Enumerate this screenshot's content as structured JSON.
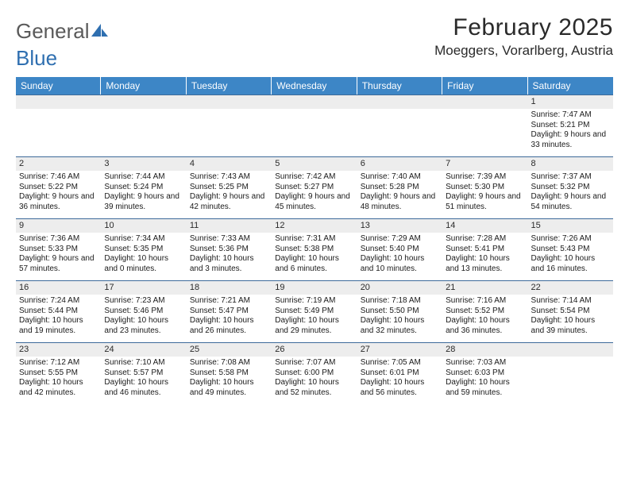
{
  "logo": {
    "text_a": "General",
    "text_b": "Blue"
  },
  "title": "February 2025",
  "location": "Moeggers, Vorarlberg, Austria",
  "colors": {
    "header_bg": "#3d86c6",
    "header_text": "#ffffff",
    "band_bg": "#ededed",
    "band_border": "#3d6a9a",
    "body_text": "#1a1a1a"
  },
  "day_names": [
    "Sunday",
    "Monday",
    "Tuesday",
    "Wednesday",
    "Thursday",
    "Friday",
    "Saturday"
  ],
  "weeks": [
    [
      {
        "n": "",
        "sr": "",
        "ss": "",
        "dl": ""
      },
      {
        "n": "",
        "sr": "",
        "ss": "",
        "dl": ""
      },
      {
        "n": "",
        "sr": "",
        "ss": "",
        "dl": ""
      },
      {
        "n": "",
        "sr": "",
        "ss": "",
        "dl": ""
      },
      {
        "n": "",
        "sr": "",
        "ss": "",
        "dl": ""
      },
      {
        "n": "",
        "sr": "",
        "ss": "",
        "dl": ""
      },
      {
        "n": "1",
        "sr": "Sunrise: 7:47 AM",
        "ss": "Sunset: 5:21 PM",
        "dl": "Daylight: 9 hours and 33 minutes."
      }
    ],
    [
      {
        "n": "2",
        "sr": "Sunrise: 7:46 AM",
        "ss": "Sunset: 5:22 PM",
        "dl": "Daylight: 9 hours and 36 minutes."
      },
      {
        "n": "3",
        "sr": "Sunrise: 7:44 AM",
        "ss": "Sunset: 5:24 PM",
        "dl": "Daylight: 9 hours and 39 minutes."
      },
      {
        "n": "4",
        "sr": "Sunrise: 7:43 AM",
        "ss": "Sunset: 5:25 PM",
        "dl": "Daylight: 9 hours and 42 minutes."
      },
      {
        "n": "5",
        "sr": "Sunrise: 7:42 AM",
        "ss": "Sunset: 5:27 PM",
        "dl": "Daylight: 9 hours and 45 minutes."
      },
      {
        "n": "6",
        "sr": "Sunrise: 7:40 AM",
        "ss": "Sunset: 5:28 PM",
        "dl": "Daylight: 9 hours and 48 minutes."
      },
      {
        "n": "7",
        "sr": "Sunrise: 7:39 AM",
        "ss": "Sunset: 5:30 PM",
        "dl": "Daylight: 9 hours and 51 minutes."
      },
      {
        "n": "8",
        "sr": "Sunrise: 7:37 AM",
        "ss": "Sunset: 5:32 PM",
        "dl": "Daylight: 9 hours and 54 minutes."
      }
    ],
    [
      {
        "n": "9",
        "sr": "Sunrise: 7:36 AM",
        "ss": "Sunset: 5:33 PM",
        "dl": "Daylight: 9 hours and 57 minutes."
      },
      {
        "n": "10",
        "sr": "Sunrise: 7:34 AM",
        "ss": "Sunset: 5:35 PM",
        "dl": "Daylight: 10 hours and 0 minutes."
      },
      {
        "n": "11",
        "sr": "Sunrise: 7:33 AM",
        "ss": "Sunset: 5:36 PM",
        "dl": "Daylight: 10 hours and 3 minutes."
      },
      {
        "n": "12",
        "sr": "Sunrise: 7:31 AM",
        "ss": "Sunset: 5:38 PM",
        "dl": "Daylight: 10 hours and 6 minutes."
      },
      {
        "n": "13",
        "sr": "Sunrise: 7:29 AM",
        "ss": "Sunset: 5:40 PM",
        "dl": "Daylight: 10 hours and 10 minutes."
      },
      {
        "n": "14",
        "sr": "Sunrise: 7:28 AM",
        "ss": "Sunset: 5:41 PM",
        "dl": "Daylight: 10 hours and 13 minutes."
      },
      {
        "n": "15",
        "sr": "Sunrise: 7:26 AM",
        "ss": "Sunset: 5:43 PM",
        "dl": "Daylight: 10 hours and 16 minutes."
      }
    ],
    [
      {
        "n": "16",
        "sr": "Sunrise: 7:24 AM",
        "ss": "Sunset: 5:44 PM",
        "dl": "Daylight: 10 hours and 19 minutes."
      },
      {
        "n": "17",
        "sr": "Sunrise: 7:23 AM",
        "ss": "Sunset: 5:46 PM",
        "dl": "Daylight: 10 hours and 23 minutes."
      },
      {
        "n": "18",
        "sr": "Sunrise: 7:21 AM",
        "ss": "Sunset: 5:47 PM",
        "dl": "Daylight: 10 hours and 26 minutes."
      },
      {
        "n": "19",
        "sr": "Sunrise: 7:19 AM",
        "ss": "Sunset: 5:49 PM",
        "dl": "Daylight: 10 hours and 29 minutes."
      },
      {
        "n": "20",
        "sr": "Sunrise: 7:18 AM",
        "ss": "Sunset: 5:50 PM",
        "dl": "Daylight: 10 hours and 32 minutes."
      },
      {
        "n": "21",
        "sr": "Sunrise: 7:16 AM",
        "ss": "Sunset: 5:52 PM",
        "dl": "Daylight: 10 hours and 36 minutes."
      },
      {
        "n": "22",
        "sr": "Sunrise: 7:14 AM",
        "ss": "Sunset: 5:54 PM",
        "dl": "Daylight: 10 hours and 39 minutes."
      }
    ],
    [
      {
        "n": "23",
        "sr": "Sunrise: 7:12 AM",
        "ss": "Sunset: 5:55 PM",
        "dl": "Daylight: 10 hours and 42 minutes."
      },
      {
        "n": "24",
        "sr": "Sunrise: 7:10 AM",
        "ss": "Sunset: 5:57 PM",
        "dl": "Daylight: 10 hours and 46 minutes."
      },
      {
        "n": "25",
        "sr": "Sunrise: 7:08 AM",
        "ss": "Sunset: 5:58 PM",
        "dl": "Daylight: 10 hours and 49 minutes."
      },
      {
        "n": "26",
        "sr": "Sunrise: 7:07 AM",
        "ss": "Sunset: 6:00 PM",
        "dl": "Daylight: 10 hours and 52 minutes."
      },
      {
        "n": "27",
        "sr": "Sunrise: 7:05 AM",
        "ss": "Sunset: 6:01 PM",
        "dl": "Daylight: 10 hours and 56 minutes."
      },
      {
        "n": "28",
        "sr": "Sunrise: 7:03 AM",
        "ss": "Sunset: 6:03 PM",
        "dl": "Daylight: 10 hours and 59 minutes."
      },
      {
        "n": "",
        "sr": "",
        "ss": "",
        "dl": ""
      }
    ]
  ]
}
